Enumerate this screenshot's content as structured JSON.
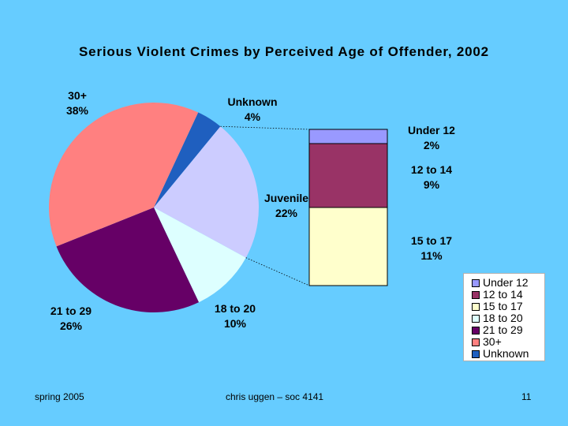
{
  "slide": {
    "footer_left": "spring 2005",
    "footer_center": "chris uggen – soc 4141",
    "footer_right": "11"
  },
  "chart_data": {
    "type": "pie",
    "title": "Serious Violent Crimes by Perceived Age of Offender, 2002",
    "slices": [
      {
        "label": "Unknown",
        "value": 4,
        "pct_label": "4%",
        "color": "#1F5FBF"
      },
      {
        "label": "Juvenile",
        "value": 22,
        "pct_label": "22%",
        "color": "#CCCCFF"
      },
      {
        "label": "18 to 20",
        "value": 10,
        "pct_label": "10%",
        "color": "#DDFFFF"
      },
      {
        "label": "21 to 29",
        "value": 26,
        "pct_label": "26%",
        "color": "#660066"
      },
      {
        "label": "30+",
        "value": 38,
        "pct_label": "38%",
        "color": "#FF8080"
      }
    ],
    "breakdown": {
      "of": "Juvenile",
      "segments": [
        {
          "label": "Under 12",
          "value": 2,
          "pct_label": "2%",
          "color": "#9999FF"
        },
        {
          "label": "12 to 14",
          "value": 9,
          "pct_label": "9%",
          "color": "#993366"
        },
        {
          "label": "15 to 17",
          "value": 11,
          "pct_label": "11%",
          "color": "#FFFFCC"
        }
      ]
    },
    "legend": {
      "position": "bottom-right",
      "entries": [
        {
          "label": "Under 12",
          "color": "#9999FF"
        },
        {
          "label": "12 to 14",
          "color": "#993366"
        },
        {
          "label": "15 to 17",
          "color": "#FFFFCC"
        },
        {
          "label": "18 to 20",
          "color": "#DDFFFF"
        },
        {
          "label": "21 to 29",
          "color": "#660066"
        },
        {
          "label": "30+",
          "color": "#FF8080"
        },
        {
          "label": "Unknown",
          "color": "#1F5FBF"
        }
      ]
    }
  }
}
